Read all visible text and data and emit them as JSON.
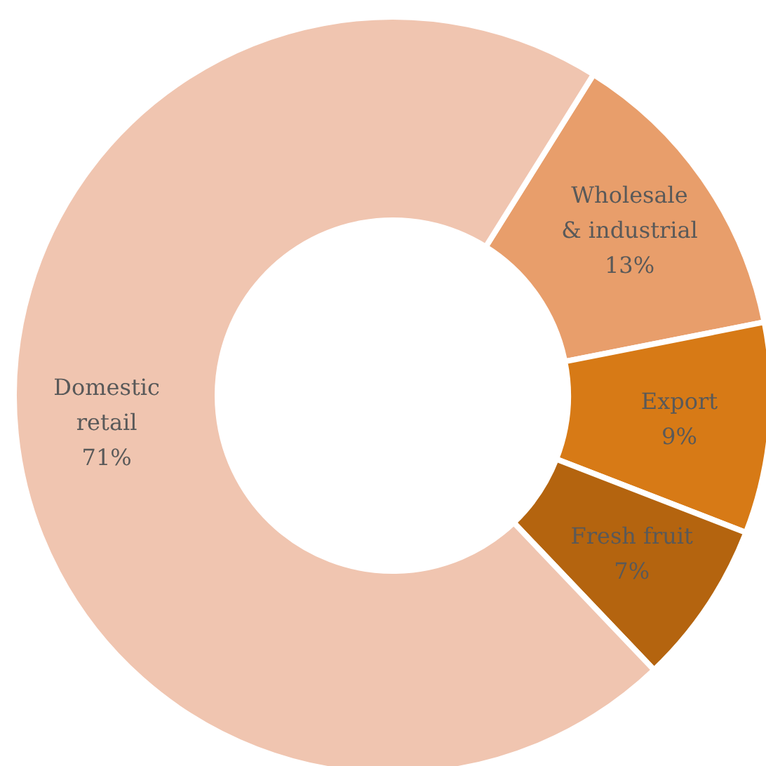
{
  "chart_data": {
    "type": "donut",
    "categories": [
      "Wholesale\n& industrial",
      "Export",
      "Fresh fruit",
      "Domestic\nretail"
    ],
    "values": [
      13,
      9,
      7,
      71
    ],
    "value_labels": [
      "13%",
      "9%",
      "7%",
      "71%"
    ],
    "colors": [
      "#e89e6b",
      "#d77a16",
      "#b4640f",
      "#f0c5b0"
    ]
  }
}
